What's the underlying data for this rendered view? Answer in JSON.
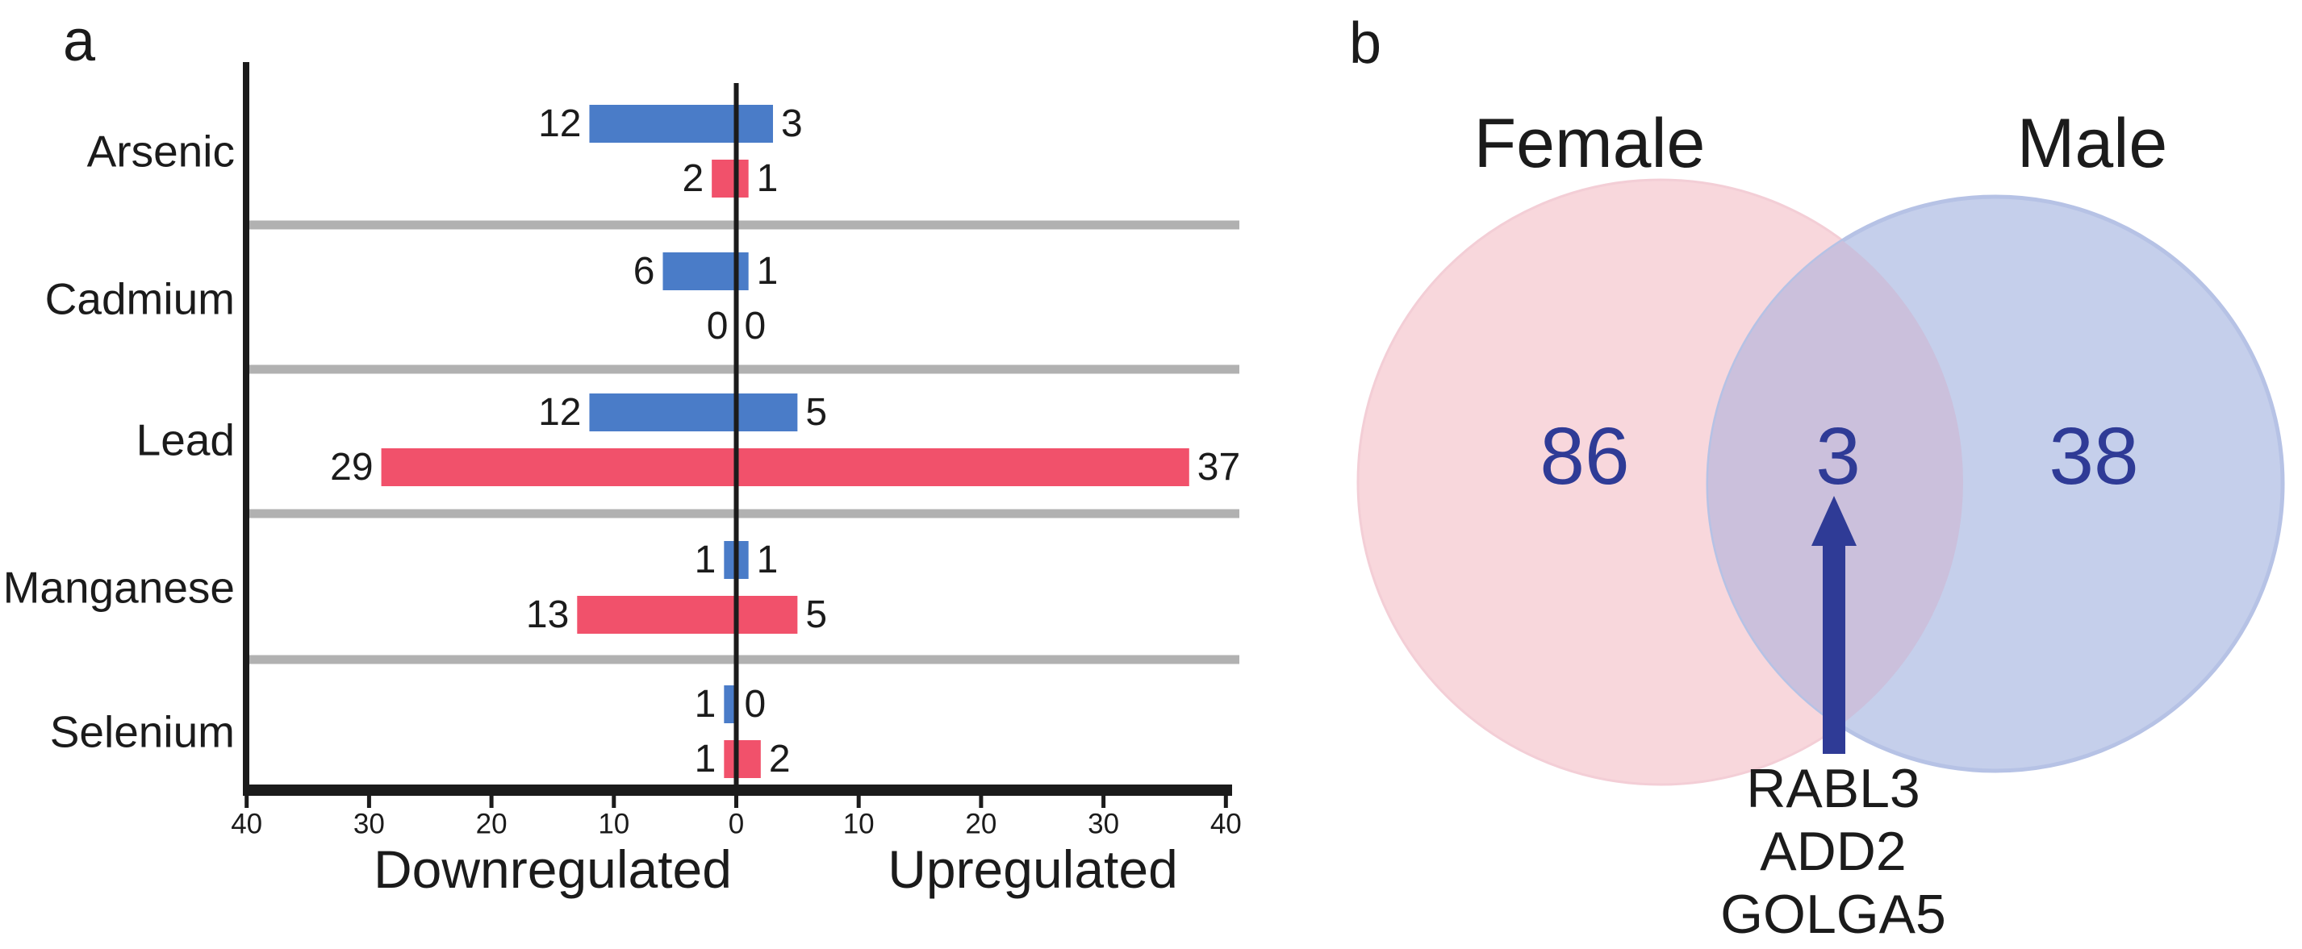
{
  "figure": {
    "panel_a_label": "a",
    "panel_b_label": "b"
  },
  "chart_data": [
    {
      "type": "bar",
      "orientation": "horizontal-diverging",
      "panel": "a",
      "categories": [
        "Arsenic",
        "Cadmium",
        "Lead",
        "Manganese",
        "Selenium"
      ],
      "series": [
        {
          "name": "blue",
          "color": "#4a7cc8",
          "downregulated": [
            12,
            6,
            12,
            1,
            1
          ],
          "upregulated": [
            3,
            1,
            5,
            1,
            0
          ]
        },
        {
          "name": "red",
          "color": "#f1516b",
          "downregulated": [
            2,
            0,
            29,
            13,
            1
          ],
          "upregulated": [
            1,
            0,
            37,
            5,
            2
          ]
        }
      ],
      "x_axis": {
        "range": [
          -40,
          40
        ],
        "tick_labels": [
          "40",
          "30",
          "20",
          "10",
          "0",
          "10",
          "20",
          "30",
          "40"
        ],
        "left_label": "Downregulated",
        "right_label": "Upregulated"
      },
      "grid": false,
      "separator_color": "#b1b1b1",
      "axis_color": "#1b1b1b"
    },
    {
      "type": "venn",
      "panel": "b",
      "sets": [
        {
          "label": "Female",
          "value": 86,
          "color": "#f8d7dc"
        },
        {
          "label": "Male",
          "value": 38,
          "color": "#c5cfeb"
        }
      ],
      "intersection": {
        "value": 3,
        "color": "#cbc0dc",
        "genes": [
          "RABL3",
          "ADD2",
          "GOLGA5"
        ]
      },
      "accent_color": "#2f3b96"
    }
  ]
}
